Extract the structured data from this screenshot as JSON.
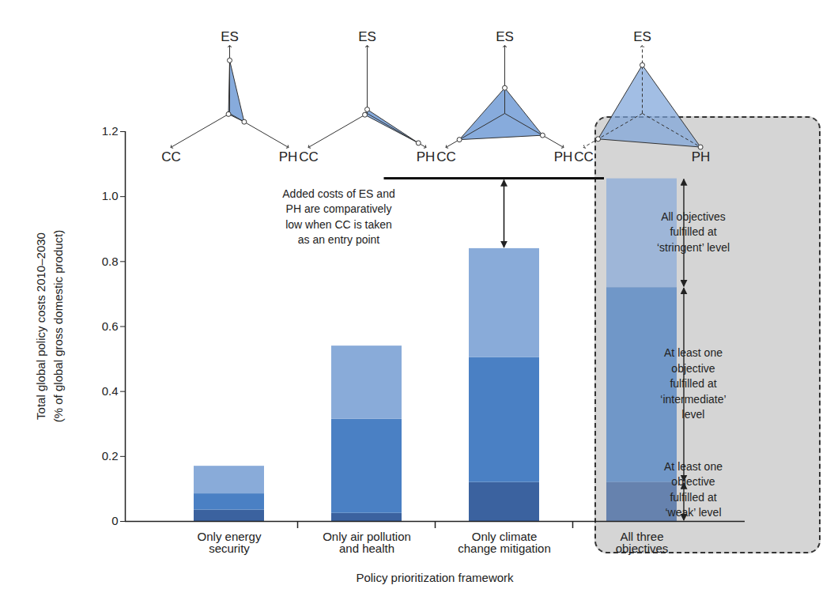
{
  "chart_data": {
    "type": "bar",
    "stacked": true,
    "x_label": "Policy prioritization framework",
    "y_label": "Total global policy costs 2010–2030\n(% of global gross domestic product)",
    "categories": [
      "Only energy security",
      "Only air pollution and health",
      "Only climate change mitigation",
      "All three objectives"
    ],
    "series": [
      {
        "name": "At least one objective fulfilled at ‘weak’ level",
        "color": "#3b629f",
        "values": [
          0.035,
          0.025,
          0.12,
          0.12
        ]
      },
      {
        "name": "At least one objective fulfilled at ‘intermediate’ level",
        "color": "#4a80c4",
        "values": [
          0.05,
          0.29,
          0.385,
          0.6
        ]
      },
      {
        "name": "All objectives fulfilled at ‘stringent’ level",
        "color": "#89abd9",
        "values": [
          0.085,
          0.225,
          0.335,
          0.335
        ]
      }
    ],
    "ylim": [
      0,
      1.2
    ],
    "yticks": [
      0,
      0.2,
      0.4,
      0.6,
      0.8,
      {
        "value": 1,
        "label": "1.0"
      },
      1.2
    ],
    "annotations": [
      {
        "text": "Added costs of ES and PH are comparatively low when CC is taken as an entry point"
      }
    ],
    "radar": {
      "axes": [
        "ES",
        "CC",
        "PH"
      ],
      "lim": [
        0,
        1
      ],
      "color": "#7aa2d8",
      "values": [
        [
          0.79,
          0.02,
          0.25
        ],
        [
          0.06,
          0.04,
          0.88
        ],
        [
          0.38,
          0.78,
          0.65
        ],
        [
          0.72,
          0.76,
          1.0
        ]
      ]
    }
  }
}
